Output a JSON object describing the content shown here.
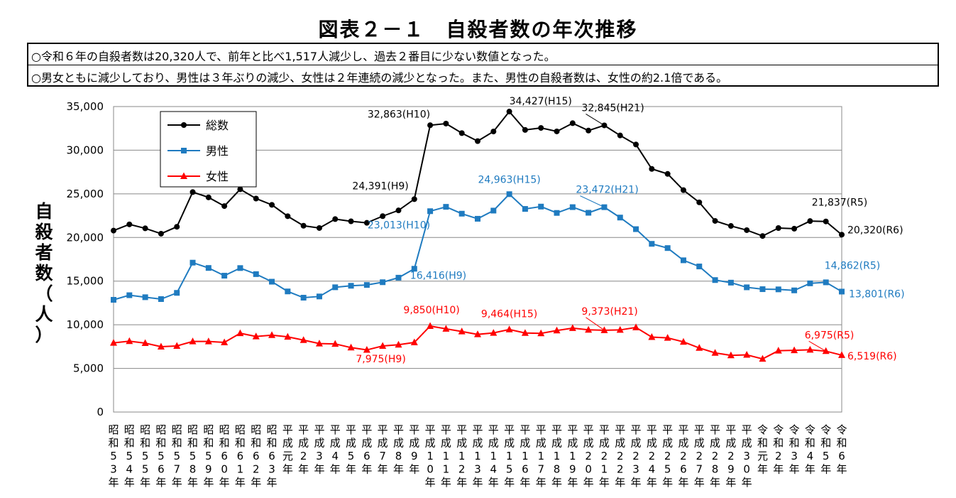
{
  "title": "図表２－１　自殺者数の年次推移",
  "notes": [
    "○令和６年の自殺者数は20,320人で、前年と比べ1,517人減少し、過去２番目に少ない数値となった。",
    "○男女ともに減少しており、男性は３年ぶりの減少、女性は２年連続の減少となった。また、男性の自殺者数は、女性の約2.1倍である。"
  ],
  "chart_data": {
    "type": "line",
    "ylabel": [
      "自",
      "殺",
      "者",
      "数",
      "（",
      "人",
      "）"
    ],
    "ylim": [
      0,
      35000
    ],
    "yticks": [
      0,
      5000,
      10000,
      15000,
      20000,
      25000,
      30000,
      35000
    ],
    "ytick_labels": [
      "0",
      "5,000",
      "10,000",
      "15,000",
      "20,000",
      "25,000",
      "30,000",
      "35,000"
    ],
    "grid": true,
    "legend": "top-left",
    "categories": [
      [
        "昭",
        "和",
        "5",
        "3",
        "年"
      ],
      [
        "昭",
        "和",
        "5",
        "4",
        "年"
      ],
      [
        "昭",
        "和",
        "5",
        "5",
        "年"
      ],
      [
        "昭",
        "和",
        "5",
        "6",
        "年"
      ],
      [
        "昭",
        "和",
        "5",
        "7",
        "年"
      ],
      [
        "昭",
        "和",
        "5",
        "8",
        "年"
      ],
      [
        "昭",
        "和",
        "5",
        "9",
        "年"
      ],
      [
        "昭",
        "和",
        "6",
        "0",
        "年"
      ],
      [
        "昭",
        "和",
        "6",
        "1",
        "年"
      ],
      [
        "昭",
        "和",
        "6",
        "2",
        "年"
      ],
      [
        "昭",
        "和",
        "6",
        "3",
        "年"
      ],
      [
        "平",
        "成",
        "元",
        "年"
      ],
      [
        "平",
        "成",
        "2",
        "年"
      ],
      [
        "平",
        "成",
        "3",
        "年"
      ],
      [
        "平",
        "成",
        "4",
        "年"
      ],
      [
        "平",
        "成",
        "5",
        "年"
      ],
      [
        "平",
        "成",
        "6",
        "年"
      ],
      [
        "平",
        "成",
        "7",
        "年"
      ],
      [
        "平",
        "成",
        "8",
        "年"
      ],
      [
        "平",
        "成",
        "9",
        "年"
      ],
      [
        "平",
        "成",
        "1",
        "0",
        "年"
      ],
      [
        "平",
        "成",
        "1",
        "1",
        "年"
      ],
      [
        "平",
        "成",
        "1",
        "2",
        "年"
      ],
      [
        "平",
        "成",
        "1",
        "3",
        "年"
      ],
      [
        "平",
        "成",
        "1",
        "4",
        "年"
      ],
      [
        "平",
        "成",
        "1",
        "5",
        "年"
      ],
      [
        "平",
        "成",
        "1",
        "6",
        "年"
      ],
      [
        "平",
        "成",
        "1",
        "7",
        "年"
      ],
      [
        "平",
        "成",
        "1",
        "8",
        "年"
      ],
      [
        "平",
        "成",
        "1",
        "9",
        "年"
      ],
      [
        "平",
        "成",
        "2",
        "0",
        "年"
      ],
      [
        "平",
        "成",
        "2",
        "1",
        "年"
      ],
      [
        "平",
        "成",
        "2",
        "2",
        "年"
      ],
      [
        "平",
        "成",
        "2",
        "3",
        "年"
      ],
      [
        "平",
        "成",
        "2",
        "4",
        "年"
      ],
      [
        "平",
        "成",
        "2",
        "5",
        "年"
      ],
      [
        "平",
        "成",
        "2",
        "6",
        "年"
      ],
      [
        "平",
        "成",
        "2",
        "7",
        "年"
      ],
      [
        "平",
        "成",
        "2",
        "8",
        "年"
      ],
      [
        "平",
        "成",
        "2",
        "9",
        "年"
      ],
      [
        "平",
        "成",
        "3",
        "0",
        "年"
      ],
      [
        "令",
        "和",
        "元",
        "年"
      ],
      [
        "令",
        "和",
        "2",
        "年"
      ],
      [
        "令",
        "和",
        "3",
        "年"
      ],
      [
        "令",
        "和",
        "4",
        "年"
      ],
      [
        "令",
        "和",
        "5",
        "年"
      ],
      [
        "令",
        "和",
        "6",
        "年"
      ]
    ],
    "series": [
      {
        "name": "総数",
        "color": "#000000",
        "marker": "circle",
        "values": [
          20788,
          21503,
          21048,
          20434,
          21228,
          25202,
          24596,
          23599,
          25524,
          24460,
          23742,
          22436,
          21346,
          21084,
          22104,
          21851,
          21679,
          22445,
          23104,
          24391,
          32863,
          33048,
          31957,
          31042,
          32143,
          34427,
          32325,
          32552,
          32155,
          33093,
          32249,
          32845,
          31690,
          30651,
          27858,
          27283,
          25427,
          24025,
          21897,
          21321,
          20840,
          20169,
          21081,
          21007,
          21881,
          21837,
          20320
        ]
      },
      {
        "name": "男性",
        "color": "#1f7bc0",
        "marker": "square",
        "values": [
          12859,
          13386,
          13155,
          12942,
          13654,
          17116,
          16508,
          15624,
          16497,
          15802,
          14934,
          13818,
          13102,
          13242,
          14296,
          14468,
          14560,
          14874,
          15393,
          16416,
          23013,
          23512,
          22727,
          22144,
          23080,
          24963,
          23272,
          23540,
          22813,
          23478,
          22831,
          23472,
          22283,
          20955,
          19273,
          18787,
          17386,
          16681,
          15121,
          14826,
          14290,
          14078,
          14055,
          13939,
          14746,
          14862,
          13801
        ]
      },
      {
        "name": "女性",
        "color": "#ff0000",
        "marker": "triangle",
        "values": [
          7929,
          8117,
          7893,
          7492,
          7574,
          8086,
          8088,
          7975,
          9027,
          8658,
          8808,
          8618,
          8244,
          7842,
          7808,
          7383,
          7119,
          7571,
          7711,
          7975,
          9850,
          9536,
          9230,
          8898,
          9063,
          9464,
          9053,
          9012,
          9342,
          9615,
          9418,
          9373,
          9407,
          9696,
          8585,
          8496,
          8041,
          7344,
          6776,
          6495,
          6550,
          6091,
          7026,
          7068,
          7135,
          6975,
          6519
        ]
      }
    ],
    "annotations": [
      {
        "series": 0,
        "index": 19,
        "text": "24,391(H9)"
      },
      {
        "series": 0,
        "index": 20,
        "text": "32,863(H10)"
      },
      {
        "series": 0,
        "index": 25,
        "text": "34,427(H15)"
      },
      {
        "series": 0,
        "index": 31,
        "text": "32,845(H21)"
      },
      {
        "series": 0,
        "index": 45,
        "text": "21,837(R5)"
      },
      {
        "series": 0,
        "index": 46,
        "text": "20,320(R6)"
      },
      {
        "series": 1,
        "index": 19,
        "text": "16,416(H9)"
      },
      {
        "series": 1,
        "index": 20,
        "text": "23,013(H10)"
      },
      {
        "series": 1,
        "index": 25,
        "text": "24,963(H15)"
      },
      {
        "series": 1,
        "index": 31,
        "text": "23,472(H21)"
      },
      {
        "series": 1,
        "index": 45,
        "text": "14,862(R5)"
      },
      {
        "series": 1,
        "index": 46,
        "text": "13,801(R6)"
      },
      {
        "series": 2,
        "index": 19,
        "text": "7,975(H9)"
      },
      {
        "series": 2,
        "index": 20,
        "text": "9,850(H10)"
      },
      {
        "series": 2,
        "index": 25,
        "text": "9,464(H15)"
      },
      {
        "series": 2,
        "index": 31,
        "text": "9,373(H21)"
      },
      {
        "series": 2,
        "index": 45,
        "text": "6,975(R5)"
      },
      {
        "series": 2,
        "index": 46,
        "text": "6,519(R6)"
      }
    ]
  }
}
